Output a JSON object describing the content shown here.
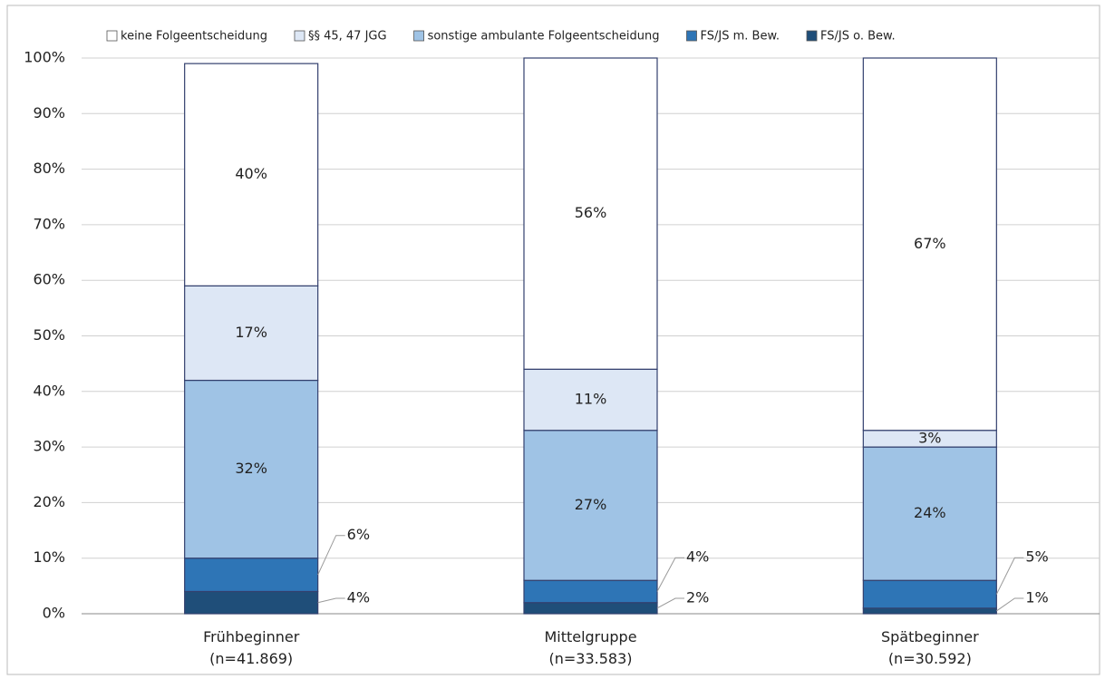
{
  "chart_data": {
    "type": "stacked-bar",
    "categories": [
      "Frühbeginner\n(n=41.869)",
      "Mittelgruppe\n(n=33.583)",
      "Spätbeginner\n(n=30.592)"
    ],
    "series": [
      {
        "name": "keine Folgeentscheidung",
        "color": "#ffffff",
        "values": [
          40,
          56,
          67
        ],
        "value_labels": [
          "40%",
          "56%",
          "67%"
        ]
      },
      {
        "name": "§§ 45, 47 JGG",
        "color": "#dde7f5",
        "values": [
          17,
          11,
          3
        ],
        "value_labels": [
          "17%",
          "11%",
          "3%"
        ]
      },
      {
        "name": "sonstige ambulante Folgeentscheidung",
        "color": "#9fc3e5",
        "values": [
          32,
          27,
          24
        ],
        "value_labels": [
          "32%",
          "27%",
          "24%"
        ]
      },
      {
        "name": "FS/JS m. Bew.",
        "color": "#2e75b6",
        "values": [
          6,
          4,
          5
        ],
        "value_labels": [
          "6%",
          "4%",
          "5%"
        ]
      },
      {
        "name": "FS/JS o. Bew.",
        "color": "#1f4e79",
        "values": [
          4,
          2,
          1
        ],
        "value_labels": [
          "4%",
          "2%",
          "1%"
        ]
      }
    ],
    "ylim": [
      0,
      100
    ],
    "yticks": [
      {
        "value": 0,
        "label": "0%"
      },
      {
        "value": 10,
        "label": "10%"
      },
      {
        "value": 20,
        "label": "20%"
      },
      {
        "value": 30,
        "label": "30%"
      },
      {
        "value": 40,
        "label": "40%"
      },
      {
        "value": 50,
        "label": "50%"
      },
      {
        "value": 60,
        "label": "60%"
      },
      {
        "value": 70,
        "label": "70%"
      },
      {
        "value": 80,
        "label": "80%"
      },
      {
        "value": 90,
        "label": "90%"
      },
      {
        "value": 100,
        "label": "100%"
      }
    ],
    "grid": true,
    "legend": "top"
  }
}
